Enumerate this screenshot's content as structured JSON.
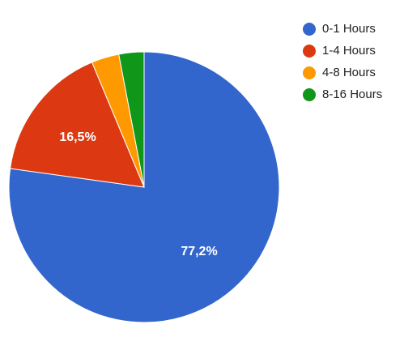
{
  "chart_data": {
    "type": "pie",
    "categories": [
      "0-1 Hours",
      "1-4 Hours",
      "4-8 Hours",
      "8-16 Hours"
    ],
    "values": [
      77.2,
      16.5,
      3.3,
      3.0
    ],
    "colors": [
      "#3366cc",
      "#dc3912",
      "#ff9900",
      "#109618"
    ],
    "data_labels": [
      "77,2%",
      "16,5%",
      "",
      ""
    ],
    "legend_position": "right"
  }
}
